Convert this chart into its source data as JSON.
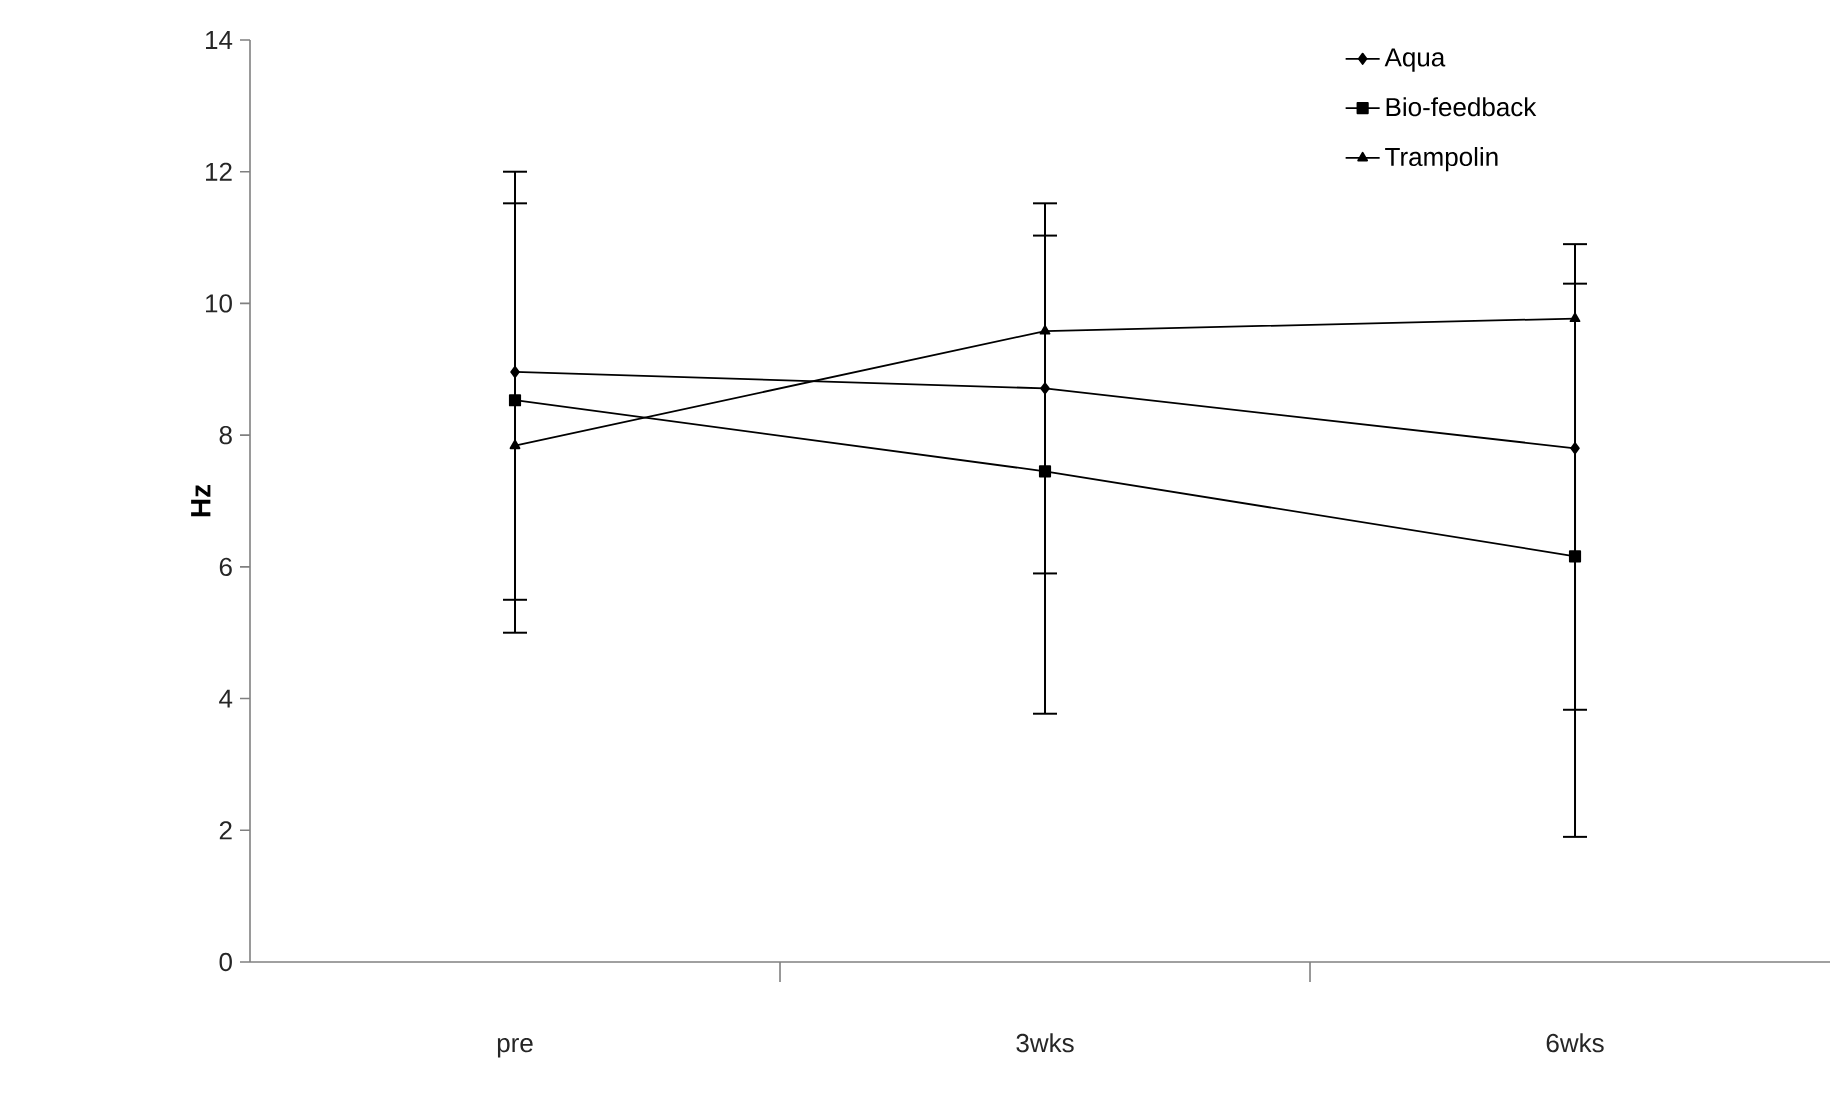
{
  "chart_data": {
    "type": "line",
    "ylabel": "**Hz**",
    "categories": [
      "pre",
      "3wks",
      "6wks"
    ],
    "ylim": [
      0,
      14
    ],
    "yticks": [
      0,
      2,
      4,
      6,
      8,
      10,
      12,
      14
    ],
    "legend": "top right",
    "grid": false,
    "line_style": "solid",
    "series": [
      {
        "name": "Aqua",
        "color": "#000000",
        "marker": "diamond",
        "values": [
          8.96,
          8.71,
          7.8
        ],
        "errors": [
          [
            5.5,
            8.96
          ],
          [
            5.9,
            8.71
          ],
          [
            3.83,
            7.8
          ]
        ]
      },
      {
        "name": "Bio-feedback",
        "color": "#000000",
        "marker": "square",
        "values": [
          8.53,
          7.45,
          6.16
        ],
        "errors": [
          [
            5.0,
            12.0
          ],
          [
            3.77,
            11.03
          ],
          [
            1.9,
            10.3
          ]
        ]
      },
      {
        "name": "Trampolin",
        "color": "#000000",
        "marker": "triangle",
        "values": [
          7.84,
          9.58,
          9.77
        ],
        "errors": [
          [
            7.84,
            11.52
          ],
          [
            9.58,
            11.52
          ],
          [
            9.77,
            10.9
          ]
        ]
      }
    ]
  }
}
